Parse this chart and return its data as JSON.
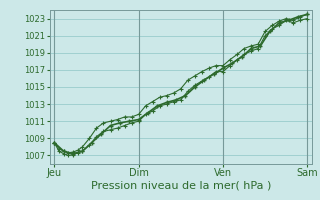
{
  "xlabel": "Pression niveau de la mer( hPa )",
  "bg_color": "#cce8e8",
  "grid_color": "#99cccc",
  "line_color": "#2d6a2d",
  "ylim": [
    1006.0,
    1024.0
  ],
  "yticks": [
    1007,
    1009,
    1011,
    1013,
    1015,
    1017,
    1019,
    1021,
    1023
  ],
  "day_labels": [
    "Jeu",
    "Dim",
    "Ven",
    "Sam"
  ],
  "day_positions": [
    0,
    72,
    144,
    216
  ],
  "xlim": [
    -4,
    220
  ],
  "series1_x": [
    0,
    4,
    8,
    12,
    16,
    20,
    24,
    30,
    36,
    42,
    48,
    54,
    60,
    66,
    72,
    78,
    84,
    90,
    96,
    102,
    108,
    114,
    120,
    126,
    132,
    138,
    144,
    150,
    156,
    162,
    168,
    174,
    180,
    186,
    192,
    198,
    204,
    210,
    216
  ],
  "series1_y": [
    1008.5,
    1007.5,
    1007.2,
    1007.0,
    1007.1,
    1007.3,
    1007.5,
    1008.2,
    1009.2,
    1009.8,
    1010.0,
    1010.2,
    1010.5,
    1010.8,
    1011.0,
    1011.8,
    1012.2,
    1012.8,
    1013.0,
    1013.3,
    1013.5,
    1014.5,
    1015.2,
    1015.7,
    1016.2,
    1016.8,
    1016.8,
    1017.5,
    1018.2,
    1018.8,
    1019.2,
    1019.5,
    1021.0,
    1021.8,
    1022.2,
    1022.8,
    1022.5,
    1022.8,
    1023.0
  ],
  "series2_x": [
    0,
    4,
    8,
    12,
    16,
    20,
    24,
    30,
    36,
    42,
    48,
    54,
    60,
    66,
    72,
    78,
    84,
    90,
    96,
    102,
    108,
    114,
    120,
    126,
    132,
    138,
    144,
    150,
    156,
    162,
    168,
    174,
    180,
    186,
    192,
    198,
    204,
    210,
    216
  ],
  "series2_y": [
    1008.5,
    1007.8,
    1007.5,
    1007.3,
    1007.4,
    1007.6,
    1008.0,
    1009.0,
    1010.2,
    1010.8,
    1011.0,
    1011.2,
    1011.5,
    1011.5,
    1011.8,
    1012.8,
    1013.3,
    1013.8,
    1014.0,
    1014.3,
    1014.8,
    1015.8,
    1016.3,
    1016.8,
    1017.2,
    1017.5,
    1017.5,
    1018.2,
    1018.8,
    1019.5,
    1019.8,
    1020.0,
    1021.5,
    1022.2,
    1022.7,
    1023.0,
    1022.8,
    1023.2,
    1023.5
  ],
  "series3_x": [
    0,
    8,
    16,
    24,
    32,
    40,
    48,
    56,
    64,
    72,
    80,
    88,
    96,
    104,
    112,
    120,
    128,
    136,
    144,
    152,
    160,
    168,
    176,
    184,
    192,
    200,
    208,
    216
  ],
  "series3_y": [
    1008.5,
    1007.5,
    1007.2,
    1007.5,
    1008.5,
    1009.5,
    1010.5,
    1010.8,
    1011.0,
    1011.2,
    1012.0,
    1012.8,
    1013.2,
    1013.5,
    1014.0,
    1015.0,
    1015.8,
    1016.5,
    1017.2,
    1017.8,
    1018.5,
    1019.5,
    1019.8,
    1021.5,
    1022.5,
    1022.8,
    1023.2,
    1023.5
  ]
}
